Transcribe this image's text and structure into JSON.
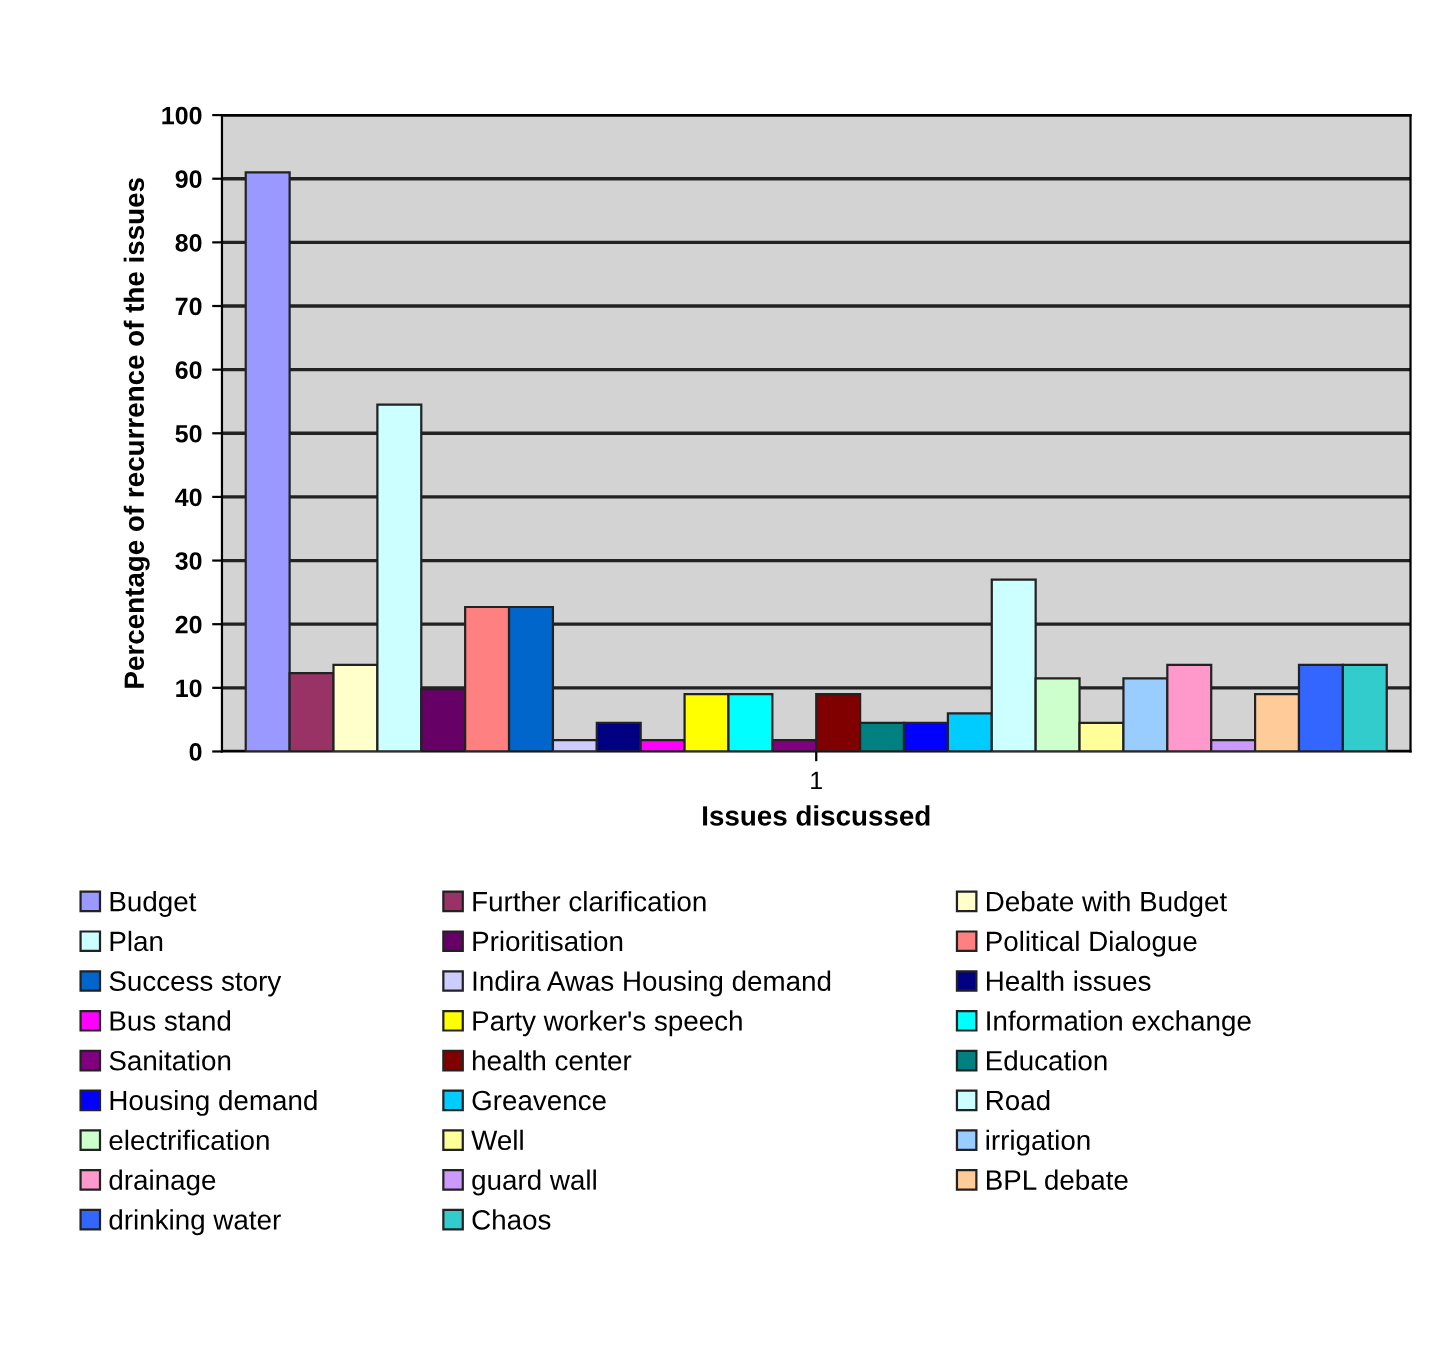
{
  "chart_data": {
    "type": "bar",
    "categories": [
      "1"
    ],
    "xlabel": "Issues discussed",
    "ylabel": "Percentage of recurrence of the issues",
    "ylim": [
      0,
      100
    ],
    "yticks": [
      0,
      10,
      20,
      30,
      40,
      50,
      60,
      70,
      80,
      90,
      100
    ],
    "grid": "y",
    "legend": "bottom",
    "series": [
      {
        "name": "Budget",
        "color": "#9999ff",
        "values": [
          91
        ]
      },
      {
        "name": "Further clarification",
        "color": "#993366",
        "values": [
          12.3
        ]
      },
      {
        "name": "Debate with Budget",
        "color": "#ffffcc",
        "values": [
          13.6
        ]
      },
      {
        "name": "Plan",
        "color": "#ccffff",
        "values": [
          54.5
        ]
      },
      {
        "name": "Prioritisation",
        "color": "#660066",
        "values": [
          9.8
        ]
      },
      {
        "name": "Political Dialogue",
        "color": "#ff8080",
        "values": [
          22.7
        ]
      },
      {
        "name": "Success story",
        "color": "#0066cc",
        "values": [
          22.7
        ]
      },
      {
        "name": "Indira Awas Housing demand",
        "color": "#ccccff",
        "values": [
          1.8
        ]
      },
      {
        "name": "Health issues",
        "color": "#000080",
        "values": [
          4.5
        ]
      },
      {
        "name": "Bus stand",
        "color": "#ff00ff",
        "values": [
          1.8
        ]
      },
      {
        "name": "Party worker's speech",
        "color": "#ffff00",
        "values": [
          9.0
        ]
      },
      {
        "name": "Information exchange",
        "color": "#00ffff",
        "values": [
          9.0
        ]
      },
      {
        "name": "Sanitation",
        "color": "#800080",
        "values": [
          1.8
        ]
      },
      {
        "name": "health center",
        "color": "#800000",
        "values": [
          9.0
        ]
      },
      {
        "name": "Education",
        "color": "#008080",
        "values": [
          4.5
        ]
      },
      {
        "name": "Housing demand",
        "color": "#0000ff",
        "values": [
          4.5
        ]
      },
      {
        "name": "Greavence",
        "color": "#00ccff",
        "values": [
          6.0
        ]
      },
      {
        "name": "Road",
        "color": "#ccffff",
        "values": [
          27.0
        ]
      },
      {
        "name": "electrification",
        "color": "#ccffcc",
        "values": [
          11.5
        ]
      },
      {
        "name": "Well",
        "color": "#ffff99",
        "values": [
          4.5
        ]
      },
      {
        "name": "irrigation",
        "color": "#99ccff",
        "values": [
          11.5
        ]
      },
      {
        "name": "drainage",
        "color": "#ff99cc",
        "values": [
          13.6
        ]
      },
      {
        "name": "guard wall",
        "color": "#cc99ff",
        "values": [
          1.8
        ]
      },
      {
        "name": "BPL debate",
        "color": "#ffcc99",
        "values": [
          9.0
        ]
      },
      {
        "name": "drinking water",
        "color": "#3366ff",
        "values": [
          13.6
        ]
      },
      {
        "name": "Chaos",
        "color": "#33cccc",
        "values": [
          13.6
        ]
      }
    ]
  }
}
